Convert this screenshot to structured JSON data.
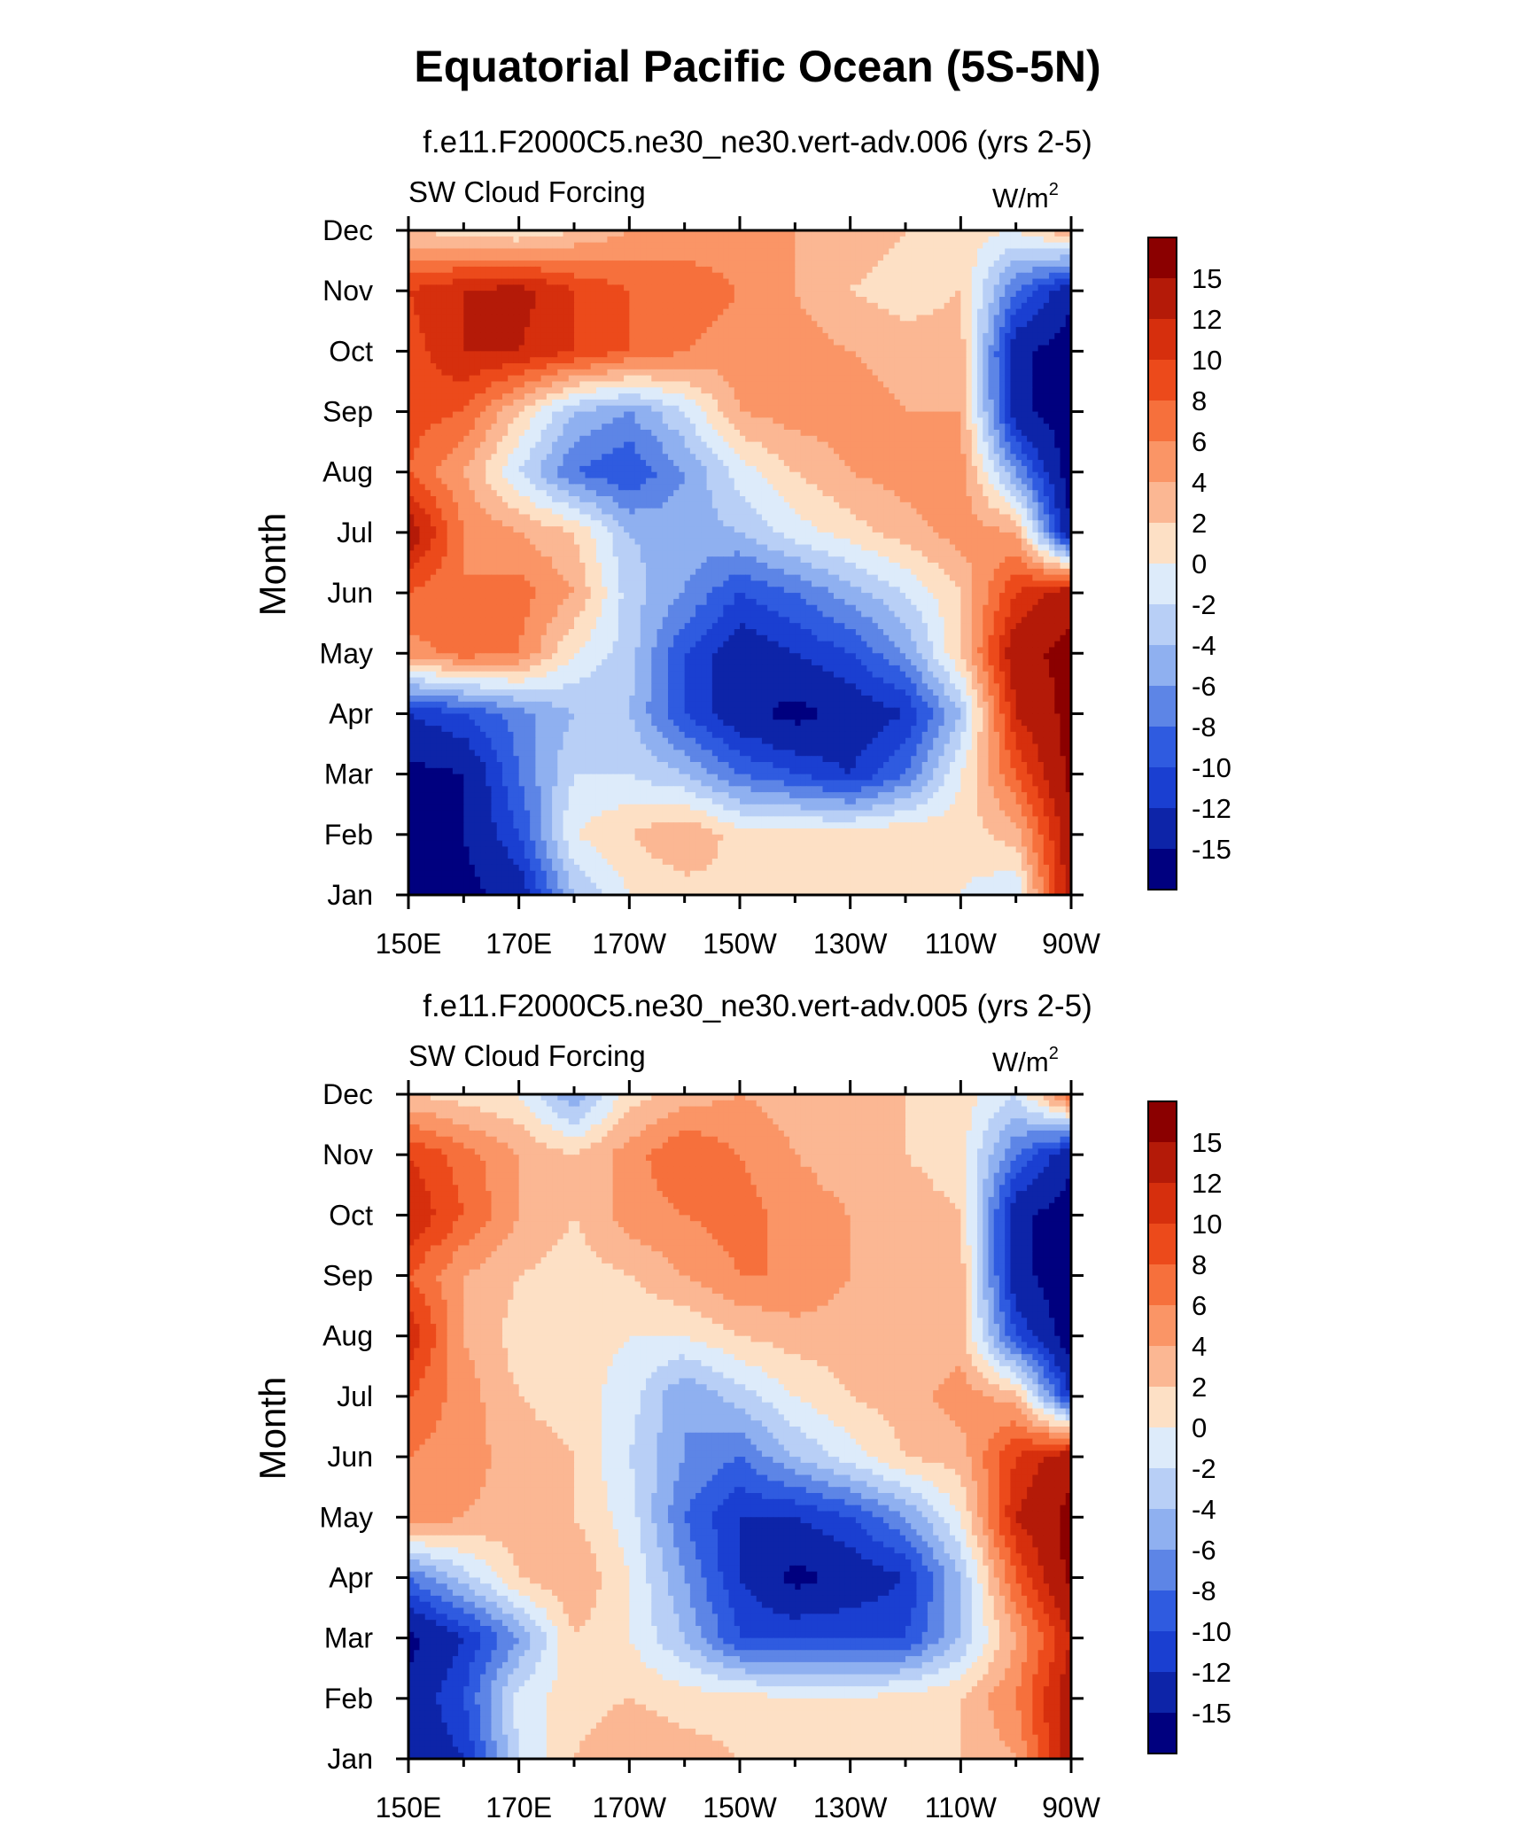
{
  "figure": {
    "title": "Equatorial Pacific Ocean (5S-5N)"
  },
  "colorbar": {
    "levels": [
      "15",
      "12",
      "10",
      "8",
      "6",
      "4",
      "2",
      "0",
      "-2",
      "-4",
      "-6",
      "-8",
      "-10",
      "-12",
      "-15"
    ],
    "colors": [
      "#8b0000",
      "#b41a08",
      "#d62f0d",
      "#ec4a1b",
      "#f6703c",
      "#fa9566",
      "#fbb793",
      "#fde0c5",
      "#ddebfa",
      "#b8cff6",
      "#8fb0f0",
      "#5d85e6",
      "#2f5be0",
      "#1a3fd1",
      "#0d24a8",
      "#00007f"
    ]
  },
  "chart_data": [
    {
      "type": "heatmap",
      "subtitle": "f.e11.F2000C5.ne30_ne30.vert-adv.006 (yrs 2-5)",
      "left_label": "SW Cloud Forcing",
      "unit": "W/m",
      "unit_sup": "2",
      "ylabel": "Month",
      "x_ticks": [
        "150E",
        "170E",
        "170W",
        "150W",
        "130W",
        "110W",
        "90W"
      ],
      "y_ticks": [
        "Jan",
        "Feb",
        "Mar",
        "Apr",
        "May",
        "Jun",
        "Jul",
        "Aug",
        "Sep",
        "Oct",
        "Nov",
        "Dec"
      ],
      "x_lon": [
        150,
        160,
        170,
        180,
        190,
        200,
        210,
        220,
        230,
        240,
        250,
        260,
        270
      ],
      "values": [
        [
          -17,
          -16,
          -14,
          -4,
          0,
          1,
          2,
          2,
          1,
          1,
          0,
          -2,
          14
        ],
        [
          -17,
          -15,
          -10,
          0,
          2,
          4,
          1,
          1,
          1,
          2,
          1,
          3,
          14
        ],
        [
          -16,
          -15,
          -8,
          -2,
          -2,
          -4,
          -8,
          -10,
          -12,
          -8,
          0,
          8,
          16
        ],
        [
          -12,
          -10,
          -7,
          -4,
          -4,
          -10,
          -14,
          -16,
          -14,
          -12,
          -4,
          12,
          16
        ],
        [
          5,
          7,
          6,
          0,
          -3,
          -10,
          -14,
          -12,
          -10,
          -6,
          2,
          14,
          16
        ],
        [
          8,
          6,
          7,
          4,
          -3,
          -6,
          -10,
          -8,
          -5,
          -2,
          2,
          10,
          14
        ],
        [
          14,
          6,
          4,
          2,
          -4,
          -5,
          -4,
          -1,
          1,
          3,
          5,
          4,
          -15
        ],
        [
          8,
          4,
          -2,
          -8,
          -10,
          -6,
          -1,
          2,
          4,
          5,
          5,
          -6,
          -17
        ],
        [
          9,
          8,
          2,
          -4,
          -6,
          -2,
          4,
          5,
          5,
          4,
          4,
          -14,
          -17
        ],
        [
          9,
          12,
          12,
          10,
          8,
          6,
          5,
          5,
          4,
          3,
          3,
          -14,
          -17
        ],
        [
          10,
          12,
          13,
          10,
          8,
          7,
          6,
          4,
          2,
          1,
          2,
          -8,
          -14
        ],
        [
          2,
          1,
          0,
          2,
          4,
          5,
          5,
          4,
          3,
          2,
          1,
          0,
          4
        ]
      ]
    },
    {
      "type": "heatmap",
      "subtitle": "f.e11.F2000C5.ne30_ne30.vert-adv.005 (yrs 2-5)",
      "left_label": "SW Cloud Forcing",
      "unit": "W/m",
      "unit_sup": "2",
      "ylabel": "Month",
      "x_ticks": [
        "150E",
        "170E",
        "170W",
        "150W",
        "130W",
        "110W",
        "90W"
      ],
      "y_ticks": [
        "Jan",
        "Feb",
        "Mar",
        "Apr",
        "May",
        "Jun",
        "Jul",
        "Aug",
        "Sep",
        "Oct",
        "Nov",
        "Dec"
      ],
      "x_lon": [
        150,
        160,
        170,
        180,
        190,
        200,
        210,
        220,
        230,
        240,
        250,
        260,
        270
      ],
      "values": [
        [
          -15,
          -12,
          -2,
          2,
          4,
          3,
          2,
          2,
          1,
          1,
          2,
          4,
          14
        ],
        [
          -14,
          -10,
          -1,
          1,
          2,
          1,
          1,
          0,
          0,
          1,
          2,
          6,
          14
        ],
        [
          -16,
          -12,
          -6,
          2,
          0,
          -4,
          -10,
          -10,
          -10,
          -10,
          -4,
          4,
          12
        ],
        [
          -8,
          -3,
          2,
          4,
          0,
          -6,
          -12,
          -16,
          -14,
          -12,
          -4,
          8,
          16
        ],
        [
          6,
          4,
          3,
          2,
          -1,
          -8,
          -12,
          -12,
          -10,
          -6,
          0,
          12,
          16
        ],
        [
          6,
          5,
          3,
          2,
          -2,
          -6,
          -8,
          -4,
          -1,
          2,
          3,
          10,
          14
        ],
        [
          8,
          5,
          2,
          1,
          -1,
          -6,
          -3,
          0,
          2,
          3,
          5,
          3,
          -12
        ],
        [
          12,
          4,
          1,
          1,
          0,
          0,
          2,
          3,
          3,
          3,
          3,
          -10,
          -17
        ],
        [
          8,
          4,
          2,
          1,
          2,
          4,
          6,
          6,
          4,
          3,
          3,
          -14,
          -17
        ],
        [
          12,
          8,
          4,
          2,
          5,
          6,
          7,
          5,
          4,
          3,
          2,
          -14,
          -17
        ],
        [
          10,
          7,
          4,
          2,
          5,
          8,
          6,
          4,
          3,
          2,
          1,
          -8,
          -14
        ],
        [
          2,
          1,
          0,
          -6,
          1,
          3,
          4,
          3,
          2,
          2,
          1,
          -2,
          8
        ]
      ]
    }
  ]
}
